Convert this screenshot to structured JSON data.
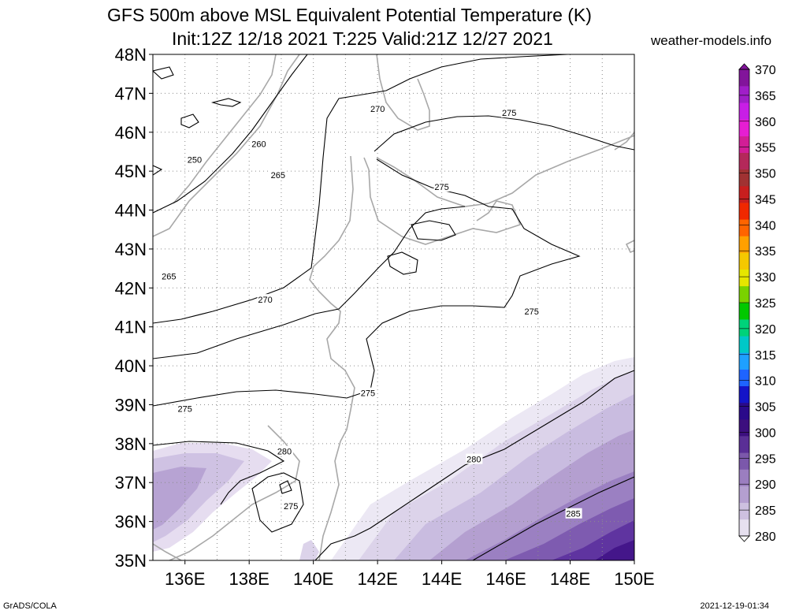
{
  "title_line1": "GFS 500m above MSL Equivalent Potential Temperature (K)",
  "title_line2": "Init:12Z 12/18 2021 T:225 Valid:21Z 12/27 2021",
  "credit": "weather-models.info",
  "footer_left": "GrADS/COLA",
  "footer_right": "2021-12-19-01:34",
  "chart_data": {
    "type": "heatmap",
    "title": "GFS 500m above MSL Equivalent Potential Temperature (K)",
    "subtitle": "Init:12Z 12/18 2021 T:225 Valid:21Z 12/27 2021",
    "xlim": [
      135,
      150
    ],
    "ylim": [
      35,
      48
    ],
    "x_ticks": [
      {
        "value": 136,
        "label": "136E"
      },
      {
        "value": 138,
        "label": "138E"
      },
      {
        "value": 140,
        "label": "140E"
      },
      {
        "value": 142,
        "label": "142E"
      },
      {
        "value": 144,
        "label": "144E"
      },
      {
        "value": 146,
        "label": "146E"
      },
      {
        "value": 148,
        "label": "148E"
      },
      {
        "value": 150,
        "label": "150E"
      }
    ],
    "y_ticks": [
      {
        "value": 35,
        "label": "35N"
      },
      {
        "value": 36,
        "label": "36N"
      },
      {
        "value": 37,
        "label": "37N"
      },
      {
        "value": 38,
        "label": "38N"
      },
      {
        "value": 39,
        "label": "39N"
      },
      {
        "value": 40,
        "label": "40N"
      },
      {
        "value": 41,
        "label": "41N"
      },
      {
        "value": 42,
        "label": "42N"
      },
      {
        "value": 43,
        "label": "43N"
      },
      {
        "value": 44,
        "label": "44N"
      },
      {
        "value": 45,
        "label": "45N"
      },
      {
        "value": 46,
        "label": "46N"
      },
      {
        "value": 47,
        "label": "47N"
      },
      {
        "value": 48,
        "label": "48N"
      }
    ],
    "grid": true,
    "colorbar": {
      "levels": [
        280,
        285,
        290,
        295,
        300,
        305,
        310,
        315,
        320,
        325,
        330,
        335,
        340,
        345,
        350,
        355,
        360,
        365,
        370
      ],
      "colors": [
        "#e6e0ef",
        "#cdc0e0",
        "#b49fd0",
        "#9b7ec0",
        "#7b58ab",
        "#5a2f96",
        "#3c0f7e",
        "#2a0a8a",
        "#1414c8",
        "#1e64ff",
        "#1ea0ff",
        "#00c8c8",
        "#00d27a",
        "#00c800",
        "#7ad200",
        "#e6e600",
        "#f5c800",
        "#ffa000",
        "#ff6400",
        "#f02800",
        "#c81e1e",
        "#a03232",
        "#b4285a",
        "#d21e96",
        "#e61ed2",
        "#c81ee6",
        "#a01ec8",
        "#82149b"
      ]
    },
    "contour_labels": [
      {
        "text": "250",
        "lon": 136.3,
        "lat": 45.3
      },
      {
        "text": "260",
        "lon": 138.3,
        "lat": 45.7
      },
      {
        "text": "265",
        "lon": 138.9,
        "lat": 44.9
      },
      {
        "text": "270",
        "lon": 142.0,
        "lat": 46.6
      },
      {
        "text": "275",
        "lon": 146.1,
        "lat": 46.5
      },
      {
        "text": "275",
        "lon": 144.0,
        "lat": 44.6
      },
      {
        "text": "265",
        "lon": 135.5,
        "lat": 42.3
      },
      {
        "text": "270",
        "lon": 138.5,
        "lat": 41.7
      },
      {
        "text": "275",
        "lon": 146.8,
        "lat": 41.4
      },
      {
        "text": "275",
        "lon": 141.7,
        "lat": 39.3
      },
      {
        "text": "275",
        "lon": 136.0,
        "lat": 38.9
      },
      {
        "text": "280",
        "lon": 139.1,
        "lat": 37.8
      },
      {
        "text": "275",
        "lon": 139.3,
        "lat": 36.4
      },
      {
        "text": "280",
        "lon": 145.0,
        "lat": 37.6
      },
      {
        "text": "285",
        "lon": 148.1,
        "lat": 36.2
      }
    ]
  }
}
